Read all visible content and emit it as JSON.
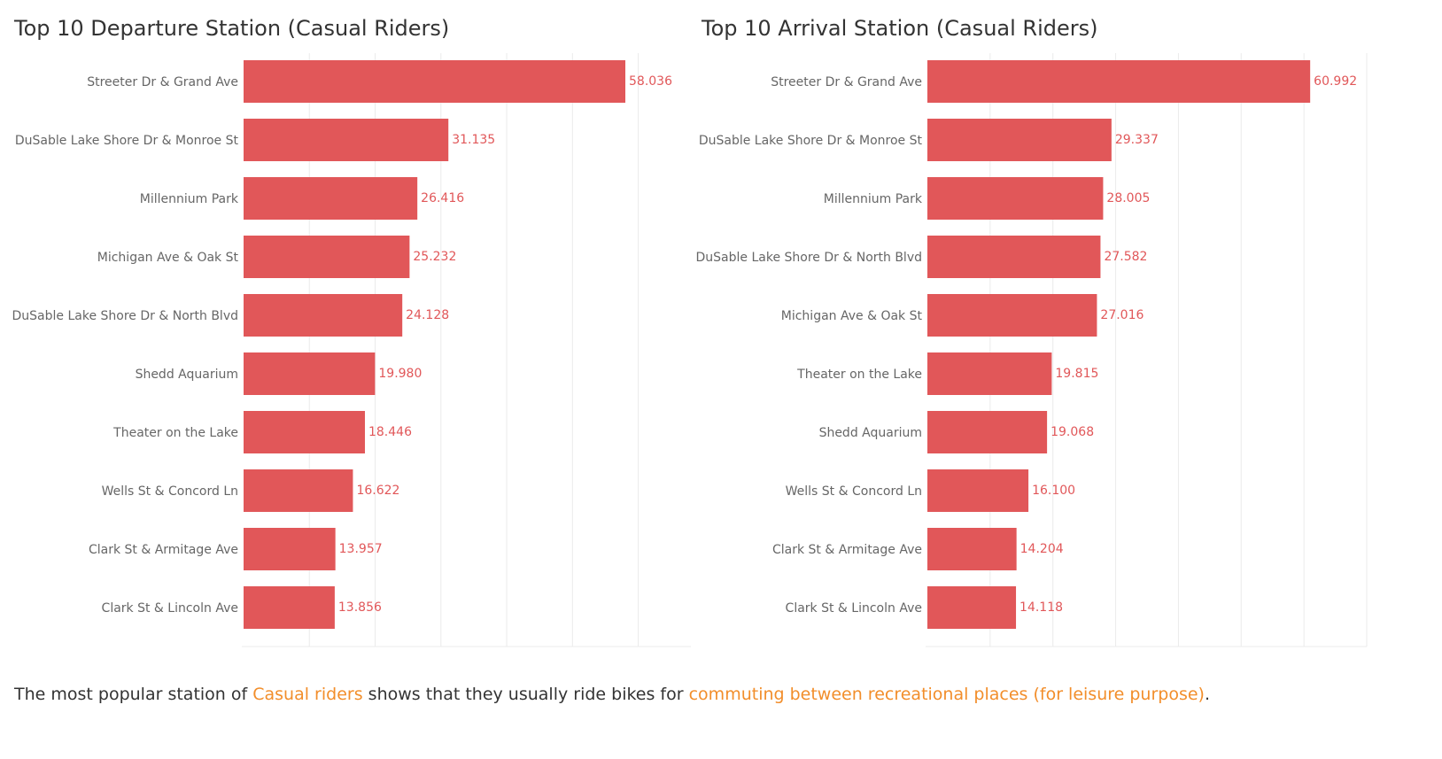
{
  "colors": {
    "bar": "#e15759",
    "value_label": "#e15759",
    "highlight": "#f28e2b",
    "grid": "#ebebeb"
  },
  "chart_data": [
    {
      "type": "bar",
      "orientation": "horizontal",
      "title": "Top 10 Departure Station (Casual Riders)",
      "categories": [
        "Streeter Dr & Grand Ave",
        "DuSable Lake Shore Dr & Monroe St",
        "Millennium Park",
        "Michigan Ave & Oak St",
        "DuSable Lake Shore Dr & North Blvd",
        "Shedd Aquarium",
        "Theater on the Lake",
        "Wells St & Concord Ln",
        "Clark St & Armitage Ave",
        "Clark St & Lincoln Ave"
      ],
      "values": [
        58036,
        31135,
        26416,
        25232,
        24128,
        19980,
        18446,
        16622,
        13957,
        13856
      ],
      "value_labels": [
        "58.036",
        "31.135",
        "26.416",
        "25.232",
        "24.128",
        "19.980",
        "18.446",
        "16.622",
        "13.957",
        "13.856"
      ],
      "xlim": [
        0,
        68000
      ],
      "grid": true
    },
    {
      "type": "bar",
      "orientation": "horizontal",
      "title": "Top 10 Arrival Station (Casual Riders)",
      "categories": [
        "Streeter Dr & Grand Ave",
        "DuSable Lake Shore Dr & Monroe St",
        "Millennium Park",
        "DuSable Lake Shore Dr & North Blvd",
        "Michigan Ave & Oak St",
        "Theater on the Lake",
        "Shedd Aquarium",
        "Wells St & Concord Ln",
        "Clark St & Armitage Ave",
        "Clark St & Lincoln Ave"
      ],
      "values": [
        60992,
        29337,
        28005,
        27582,
        27016,
        19815,
        19068,
        16100,
        14204,
        14118
      ],
      "value_labels": [
        "60.992",
        "29.337",
        "28.005",
        "27.582",
        "27.016",
        "19.815",
        "19.068",
        "16.100",
        "14.204",
        "14.118"
      ],
      "xlim": [
        0,
        70000
      ],
      "grid": true
    }
  ],
  "caption": {
    "part1": "The most popular station of ",
    "highlight1": "Casual riders",
    "part2": " shows that they usually ride bikes for ",
    "highlight2": "commuting between recreational places (for leisure purpose)",
    "part3": "."
  }
}
